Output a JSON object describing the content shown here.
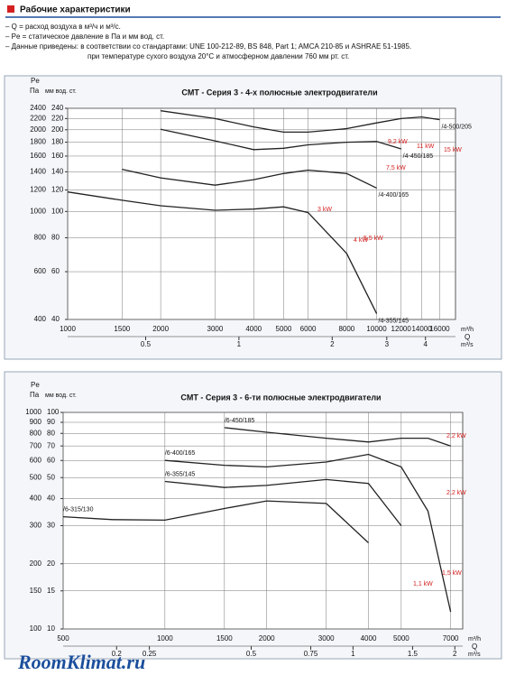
{
  "header": {
    "title": "Рабочие характеристики",
    "lines": [
      "– Q = расход воздуха в м³/ч и м³/с.",
      "– Pe = статическое давление в Па и мм вод. ст.",
      "– Данные приведены:   в соответствии со стандартами: UNE 100-212-89, BS 848, Part 1; AMCA 210-85  и ASHRAE 51-1985.",
      "при температуре сухого воздуха 20°C и атмосферном давлении 760 мм рт. ст."
    ]
  },
  "footer": {
    "watermark": "RoomKlimat.ru"
  },
  "chart_data": [
    {
      "type": "line",
      "title": "CMT - Серия 3 - 4-х полюсные электродвигатели",
      "y_label": "Pe",
      "y_unit": "Па",
      "y2_unit": "мм вод. ст.",
      "x_unit": "m³/h",
      "x_label": "Q",
      "x2_unit": "m³/s",
      "log_x": true,
      "log_y": true,
      "grid": true,
      "x": [
        1000,
        1500,
        2000,
        3000,
        4000,
        5000,
        6000,
        8000,
        10000,
        12000,
        14000,
        16000
      ],
      "series": [
        {
          "name": "/4-355/145",
          "color": "#222222",
          "values": [
            1180,
            1100,
            1050,
            1010,
            1020,
            1040,
            990,
            700,
            420,
            null,
            null,
            null
          ]
        },
        {
          "name": "/4-400/165",
          "color": "#222222",
          "values": [
            null,
            1430,
            1330,
            1250,
            1310,
            1380,
            1420,
            1380,
            1220,
            null,
            null,
            null
          ]
        },
        {
          "name": "/4-450/185",
          "color": "#222222",
          "values": [
            null,
            null,
            2010,
            1820,
            1690,
            1710,
            1760,
            1800,
            1810,
            1700,
            null,
            null
          ]
        },
        {
          "name": "/4-500/205",
          "color": "#222222",
          "values": [
            null,
            null,
            2350,
            2200,
            2050,
            1960,
            1960,
            2020,
            2120,
            2200,
            2230,
            2180
          ]
        }
      ],
      "annotations": [
        "3 kW",
        "4 kW",
        "5,5 kW",
        "7,5 kW",
        "9,2 kW",
        "11 kW",
        "15 kW"
      ],
      "annotation_color": "#d42020",
      "xlim": [
        1000,
        18000
      ],
      "xticks": [
        1000,
        1500,
        2000,
        3000,
        4000,
        5000,
        6000,
        8000,
        10000,
        12000,
        14000,
        16000
      ],
      "x2lim": [
        0.28,
        5
      ],
      "x2ticks": [
        0.5,
        1,
        2,
        3,
        4
      ],
      "ylim": [
        400,
        2400
      ],
      "yticks": [
        400,
        600,
        800,
        1000,
        1200,
        1400,
        1600,
        1800,
        2000,
        2200,
        2400
      ],
      "y2lim": [
        40,
        240
      ],
      "y2ticks": [
        40,
        60,
        80,
        100,
        120,
        140,
        160,
        180,
        200,
        220,
        240
      ]
    },
    {
      "type": "line",
      "title": "CMT - Серия 3 - 6-ти полюсные электродвигатели",
      "y_label": "Pe",
      "y_unit": "Па",
      "y2_unit": "мм вод. ст.",
      "x_unit": "m³/h",
      "x_label": "Q",
      "x2_unit": "m³/s",
      "log_x": true,
      "log_y": true,
      "grid": true,
      "x": [
        500,
        700,
        1000,
        1500,
        2000,
        3000,
        4000,
        5000,
        6000,
        7000
      ],
      "series": [
        {
          "name": "/6-315/130",
          "color": "#222222",
          "values": [
            330,
            320,
            318,
            360,
            390,
            380,
            250,
            null,
            null,
            null
          ]
        },
        {
          "name": "/6-355/145",
          "color": "#222222",
          "values": [
            null,
            null,
            480,
            450,
            460,
            490,
            470,
            300,
            null,
            null
          ]
        },
        {
          "name": "/6-400/165",
          "color": "#222222",
          "values": [
            null,
            null,
            600,
            570,
            560,
            590,
            640,
            560,
            350,
            120
          ]
        },
        {
          "name": "/6-450/185",
          "color": "#222222",
          "values": [
            null,
            null,
            null,
            850,
            810,
            760,
            730,
            760,
            760,
            700
          ]
        }
      ],
      "annotations": [
        "2,2 kW",
        "2,2 kW",
        "1,5 kW",
        "1,1 kW"
      ],
      "annotation_color": "#d42020",
      "xlim": [
        500,
        7600
      ],
      "xticks": [
        500,
        1000,
        1500,
        2000,
        3000,
        4000,
        5000,
        7000
      ],
      "x2lim": [
        0.139,
        2.11
      ],
      "x2ticks": [
        0.2,
        0.25,
        0.5,
        0.75,
        1,
        1.5,
        2
      ],
      "ylim": [
        100,
        1000
      ],
      "yticks": [
        100,
        150,
        200,
        300,
        400,
        500,
        600,
        700,
        800,
        900,
        1000
      ],
      "y2lim": [
        10,
        100
      ],
      "y2ticks": [
        10,
        15,
        20,
        30,
        40,
        50,
        60,
        70,
        80,
        90,
        100
      ]
    }
  ]
}
